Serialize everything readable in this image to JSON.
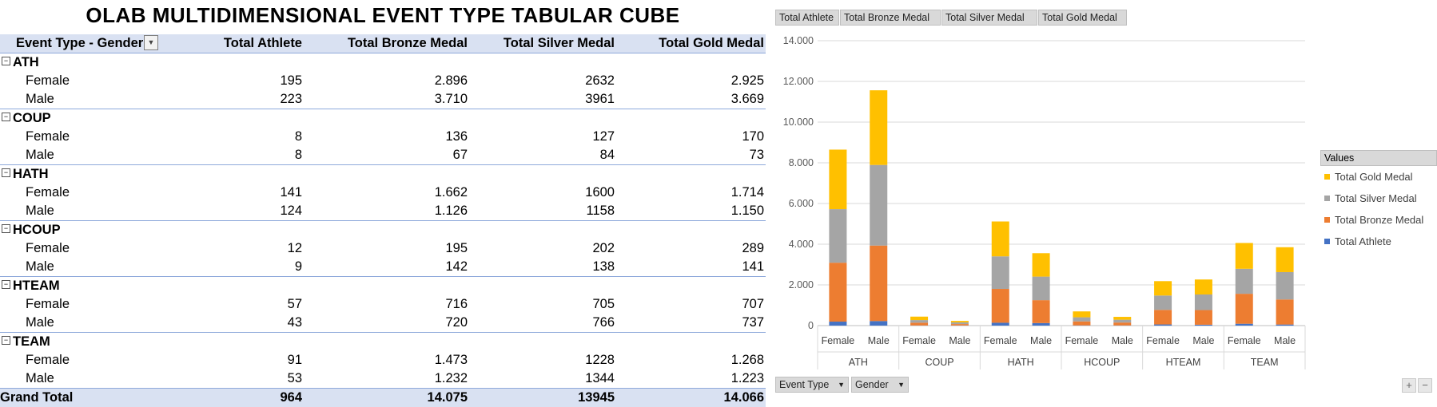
{
  "title": "OLAB MULTIDIMENSIONAL EVENT TYPE TABULAR CUBE",
  "table": {
    "headers": [
      "Event Type - Gender",
      "Total Athlete",
      "Total Bronze Medal",
      "Total Silver Medal",
      "Total Gold Medal"
    ],
    "groups": [
      {
        "name": "ATH",
        "rows": [
          {
            "label": "Female",
            "values": [
              "195",
              "2.896",
              "2632",
              "2.925"
            ]
          },
          {
            "label": "Male",
            "values": [
              "223",
              "3.710",
              "3961",
              "3.669"
            ]
          }
        ]
      },
      {
        "name": "COUP",
        "rows": [
          {
            "label": "Female",
            "values": [
              "8",
              "136",
              "127",
              "170"
            ]
          },
          {
            "label": "Male",
            "values": [
              "8",
              "67",
              "84",
              "73"
            ]
          }
        ]
      },
      {
        "name": "HATH",
        "rows": [
          {
            "label": "Female",
            "values": [
              "141",
              "1.662",
              "1600",
              "1.714"
            ]
          },
          {
            "label": "Male",
            "values": [
              "124",
              "1.126",
              "1158",
              "1.150"
            ]
          }
        ]
      },
      {
        "name": "HCOUP",
        "rows": [
          {
            "label": "Female",
            "values": [
              "12",
              "195",
              "202",
              "289"
            ]
          },
          {
            "label": "Male",
            "values": [
              "9",
              "142",
              "138",
              "141"
            ]
          }
        ]
      },
      {
        "name": "HTEAM",
        "rows": [
          {
            "label": "Female",
            "values": [
              "57",
              "716",
              "705",
              "707"
            ]
          },
          {
            "label": "Male",
            "values": [
              "43",
              "720",
              "766",
              "737"
            ]
          }
        ]
      },
      {
        "name": "TEAM",
        "rows": [
          {
            "label": "Female",
            "values": [
              "91",
              "1.473",
              "1228",
              "1.268"
            ]
          },
          {
            "label": "Male",
            "values": [
              "53",
              "1.232",
              "1344",
              "1.223"
            ]
          }
        ]
      }
    ],
    "grand_total": {
      "label": "Grand Total",
      "values": [
        "964",
        "14.075",
        "13945",
        "14.066"
      ]
    }
  },
  "chart_fields": [
    "Total Athlete",
    "Total Bronze Medal",
    "Total Silver Medal",
    "Total Gold Medal"
  ],
  "axis_fields": [
    "Event Type",
    "Gender"
  ],
  "legend": {
    "title": "Values",
    "items": [
      {
        "name": "Total Gold Medal",
        "color": "#ffc000"
      },
      {
        "name": "Total Silver Medal",
        "color": "#a5a5a5"
      },
      {
        "name": "Total Bronze Medal",
        "color": "#ed7d31"
      },
      {
        "name": "Total Athlete",
        "color": "#4472c4"
      }
    ]
  },
  "corner_buttons": {
    "plus": "+",
    "minus": "−"
  },
  "chart_data": {
    "type": "bar",
    "stacked": true,
    "groups": [
      "ATH",
      "COUP",
      "HATH",
      "HCOUP",
      "HTEAM",
      "TEAM"
    ],
    "categories": [
      "Female",
      "Male",
      "Female",
      "Male",
      "Female",
      "Male",
      "Female",
      "Male",
      "Female",
      "Male",
      "Female",
      "Male"
    ],
    "series": [
      {
        "name": "Total Athlete",
        "color": "#4472c4",
        "values": [
          195,
          223,
          8,
          8,
          141,
          124,
          12,
          9,
          57,
          43,
          91,
          53
        ]
      },
      {
        "name": "Total Bronze Medal",
        "color": "#ed7d31",
        "values": [
          2896,
          3710,
          136,
          67,
          1662,
          1126,
          195,
          142,
          716,
          720,
          1473,
          1232
        ]
      },
      {
        "name": "Total Silver Medal",
        "color": "#a5a5a5",
        "values": [
          2632,
          3961,
          127,
          84,
          1600,
          1158,
          202,
          138,
          705,
          766,
          1228,
          1344
        ]
      },
      {
        "name": "Total Gold Medal",
        "color": "#ffc000",
        "values": [
          2925,
          3669,
          170,
          73,
          1714,
          1150,
          289,
          141,
          707,
          737,
          1268,
          1223
        ]
      }
    ],
    "ylim": [
      0,
      14000
    ],
    "yticks": [
      "0",
      "2.000",
      "4.000",
      "6.000",
      "8.000",
      "10.000",
      "12.000",
      "14.000"
    ],
    "grid": true,
    "legend_position": "right"
  }
}
